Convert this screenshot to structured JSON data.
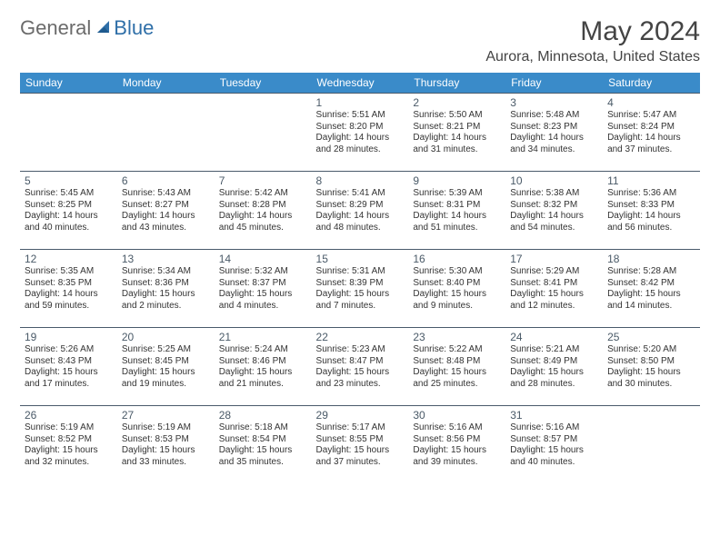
{
  "brand": {
    "part1": "General",
    "part2": "Blue"
  },
  "title": "May 2024",
  "location": "Aurora, Minnesota, United States",
  "colors": {
    "header_bg": "#3a8bc9",
    "header_text": "#ffffff",
    "row_border": "#495a6b",
    "daynum": "#4a5a68",
    "body_text": "#333333",
    "brand_gray": "#6b6b6b",
    "brand_blue": "#2f6fa8"
  },
  "days_of_week": [
    "Sunday",
    "Monday",
    "Tuesday",
    "Wednesday",
    "Thursday",
    "Friday",
    "Saturday"
  ],
  "weeks": [
    [
      null,
      null,
      null,
      {
        "n": "1",
        "sr": "Sunrise: 5:51 AM",
        "ss": "Sunset: 8:20 PM",
        "d1": "Daylight: 14 hours",
        "d2": "and 28 minutes."
      },
      {
        "n": "2",
        "sr": "Sunrise: 5:50 AM",
        "ss": "Sunset: 8:21 PM",
        "d1": "Daylight: 14 hours",
        "d2": "and 31 minutes."
      },
      {
        "n": "3",
        "sr": "Sunrise: 5:48 AM",
        "ss": "Sunset: 8:23 PM",
        "d1": "Daylight: 14 hours",
        "d2": "and 34 minutes."
      },
      {
        "n": "4",
        "sr": "Sunrise: 5:47 AM",
        "ss": "Sunset: 8:24 PM",
        "d1": "Daylight: 14 hours",
        "d2": "and 37 minutes."
      }
    ],
    [
      {
        "n": "5",
        "sr": "Sunrise: 5:45 AM",
        "ss": "Sunset: 8:25 PM",
        "d1": "Daylight: 14 hours",
        "d2": "and 40 minutes."
      },
      {
        "n": "6",
        "sr": "Sunrise: 5:43 AM",
        "ss": "Sunset: 8:27 PM",
        "d1": "Daylight: 14 hours",
        "d2": "and 43 minutes."
      },
      {
        "n": "7",
        "sr": "Sunrise: 5:42 AM",
        "ss": "Sunset: 8:28 PM",
        "d1": "Daylight: 14 hours",
        "d2": "and 45 minutes."
      },
      {
        "n": "8",
        "sr": "Sunrise: 5:41 AM",
        "ss": "Sunset: 8:29 PM",
        "d1": "Daylight: 14 hours",
        "d2": "and 48 minutes."
      },
      {
        "n": "9",
        "sr": "Sunrise: 5:39 AM",
        "ss": "Sunset: 8:31 PM",
        "d1": "Daylight: 14 hours",
        "d2": "and 51 minutes."
      },
      {
        "n": "10",
        "sr": "Sunrise: 5:38 AM",
        "ss": "Sunset: 8:32 PM",
        "d1": "Daylight: 14 hours",
        "d2": "and 54 minutes."
      },
      {
        "n": "11",
        "sr": "Sunrise: 5:36 AM",
        "ss": "Sunset: 8:33 PM",
        "d1": "Daylight: 14 hours",
        "d2": "and 56 minutes."
      }
    ],
    [
      {
        "n": "12",
        "sr": "Sunrise: 5:35 AM",
        "ss": "Sunset: 8:35 PM",
        "d1": "Daylight: 14 hours",
        "d2": "and 59 minutes."
      },
      {
        "n": "13",
        "sr": "Sunrise: 5:34 AM",
        "ss": "Sunset: 8:36 PM",
        "d1": "Daylight: 15 hours",
        "d2": "and 2 minutes."
      },
      {
        "n": "14",
        "sr": "Sunrise: 5:32 AM",
        "ss": "Sunset: 8:37 PM",
        "d1": "Daylight: 15 hours",
        "d2": "and 4 minutes."
      },
      {
        "n": "15",
        "sr": "Sunrise: 5:31 AM",
        "ss": "Sunset: 8:39 PM",
        "d1": "Daylight: 15 hours",
        "d2": "and 7 minutes."
      },
      {
        "n": "16",
        "sr": "Sunrise: 5:30 AM",
        "ss": "Sunset: 8:40 PM",
        "d1": "Daylight: 15 hours",
        "d2": "and 9 minutes."
      },
      {
        "n": "17",
        "sr": "Sunrise: 5:29 AM",
        "ss": "Sunset: 8:41 PM",
        "d1": "Daylight: 15 hours",
        "d2": "and 12 minutes."
      },
      {
        "n": "18",
        "sr": "Sunrise: 5:28 AM",
        "ss": "Sunset: 8:42 PM",
        "d1": "Daylight: 15 hours",
        "d2": "and 14 minutes."
      }
    ],
    [
      {
        "n": "19",
        "sr": "Sunrise: 5:26 AM",
        "ss": "Sunset: 8:43 PM",
        "d1": "Daylight: 15 hours",
        "d2": "and 17 minutes."
      },
      {
        "n": "20",
        "sr": "Sunrise: 5:25 AM",
        "ss": "Sunset: 8:45 PM",
        "d1": "Daylight: 15 hours",
        "d2": "and 19 minutes."
      },
      {
        "n": "21",
        "sr": "Sunrise: 5:24 AM",
        "ss": "Sunset: 8:46 PM",
        "d1": "Daylight: 15 hours",
        "d2": "and 21 minutes."
      },
      {
        "n": "22",
        "sr": "Sunrise: 5:23 AM",
        "ss": "Sunset: 8:47 PM",
        "d1": "Daylight: 15 hours",
        "d2": "and 23 minutes."
      },
      {
        "n": "23",
        "sr": "Sunrise: 5:22 AM",
        "ss": "Sunset: 8:48 PM",
        "d1": "Daylight: 15 hours",
        "d2": "and 25 minutes."
      },
      {
        "n": "24",
        "sr": "Sunrise: 5:21 AM",
        "ss": "Sunset: 8:49 PM",
        "d1": "Daylight: 15 hours",
        "d2": "and 28 minutes."
      },
      {
        "n": "25",
        "sr": "Sunrise: 5:20 AM",
        "ss": "Sunset: 8:50 PM",
        "d1": "Daylight: 15 hours",
        "d2": "and 30 minutes."
      }
    ],
    [
      {
        "n": "26",
        "sr": "Sunrise: 5:19 AM",
        "ss": "Sunset: 8:52 PM",
        "d1": "Daylight: 15 hours",
        "d2": "and 32 minutes."
      },
      {
        "n": "27",
        "sr": "Sunrise: 5:19 AM",
        "ss": "Sunset: 8:53 PM",
        "d1": "Daylight: 15 hours",
        "d2": "and 33 minutes."
      },
      {
        "n": "28",
        "sr": "Sunrise: 5:18 AM",
        "ss": "Sunset: 8:54 PM",
        "d1": "Daylight: 15 hours",
        "d2": "and 35 minutes."
      },
      {
        "n": "29",
        "sr": "Sunrise: 5:17 AM",
        "ss": "Sunset: 8:55 PM",
        "d1": "Daylight: 15 hours",
        "d2": "and 37 minutes."
      },
      {
        "n": "30",
        "sr": "Sunrise: 5:16 AM",
        "ss": "Sunset: 8:56 PM",
        "d1": "Daylight: 15 hours",
        "d2": "and 39 minutes."
      },
      {
        "n": "31",
        "sr": "Sunrise: 5:16 AM",
        "ss": "Sunset: 8:57 PM",
        "d1": "Daylight: 15 hours",
        "d2": "and 40 minutes."
      },
      null
    ]
  ]
}
